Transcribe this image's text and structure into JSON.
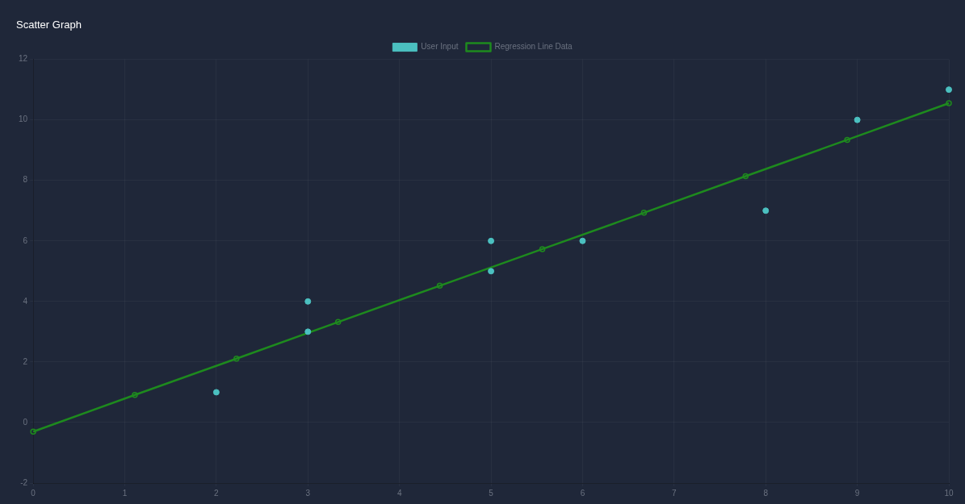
{
  "chart_data": {
    "type": "scatter",
    "title": "Scatter Graph",
    "series": [
      {
        "name": "User Input",
        "type": "scatter",
        "color": "#4bc0c0",
        "x": [
          2,
          3,
          3,
          5,
          5,
          6,
          8,
          9,
          10
        ],
        "values": [
          1,
          4,
          3,
          6,
          5,
          6,
          7,
          10,
          11
        ]
      },
      {
        "name": "Regression Line Data",
        "type": "line",
        "color": "#1e8a1e",
        "x": [
          0,
          1.11,
          2.22,
          3.33,
          4.44,
          5.56,
          6.67,
          7.78,
          8.89,
          10
        ],
        "values": [
          -0.3,
          0.91,
          2.11,
          3.32,
          4.52,
          5.73,
          6.93,
          8.14,
          9.34,
          10.55
        ]
      }
    ],
    "xlim": [
      0,
      10
    ],
    "xticks": [
      0,
      1,
      2,
      3,
      4,
      5,
      6,
      7,
      8,
      9,
      10
    ],
    "ylim": [
      -2,
      12
    ],
    "yticks": [
      -2,
      0,
      2,
      4,
      6,
      8,
      10,
      12
    ],
    "grid": true,
    "legend": "top",
    "marker": "circle"
  }
}
